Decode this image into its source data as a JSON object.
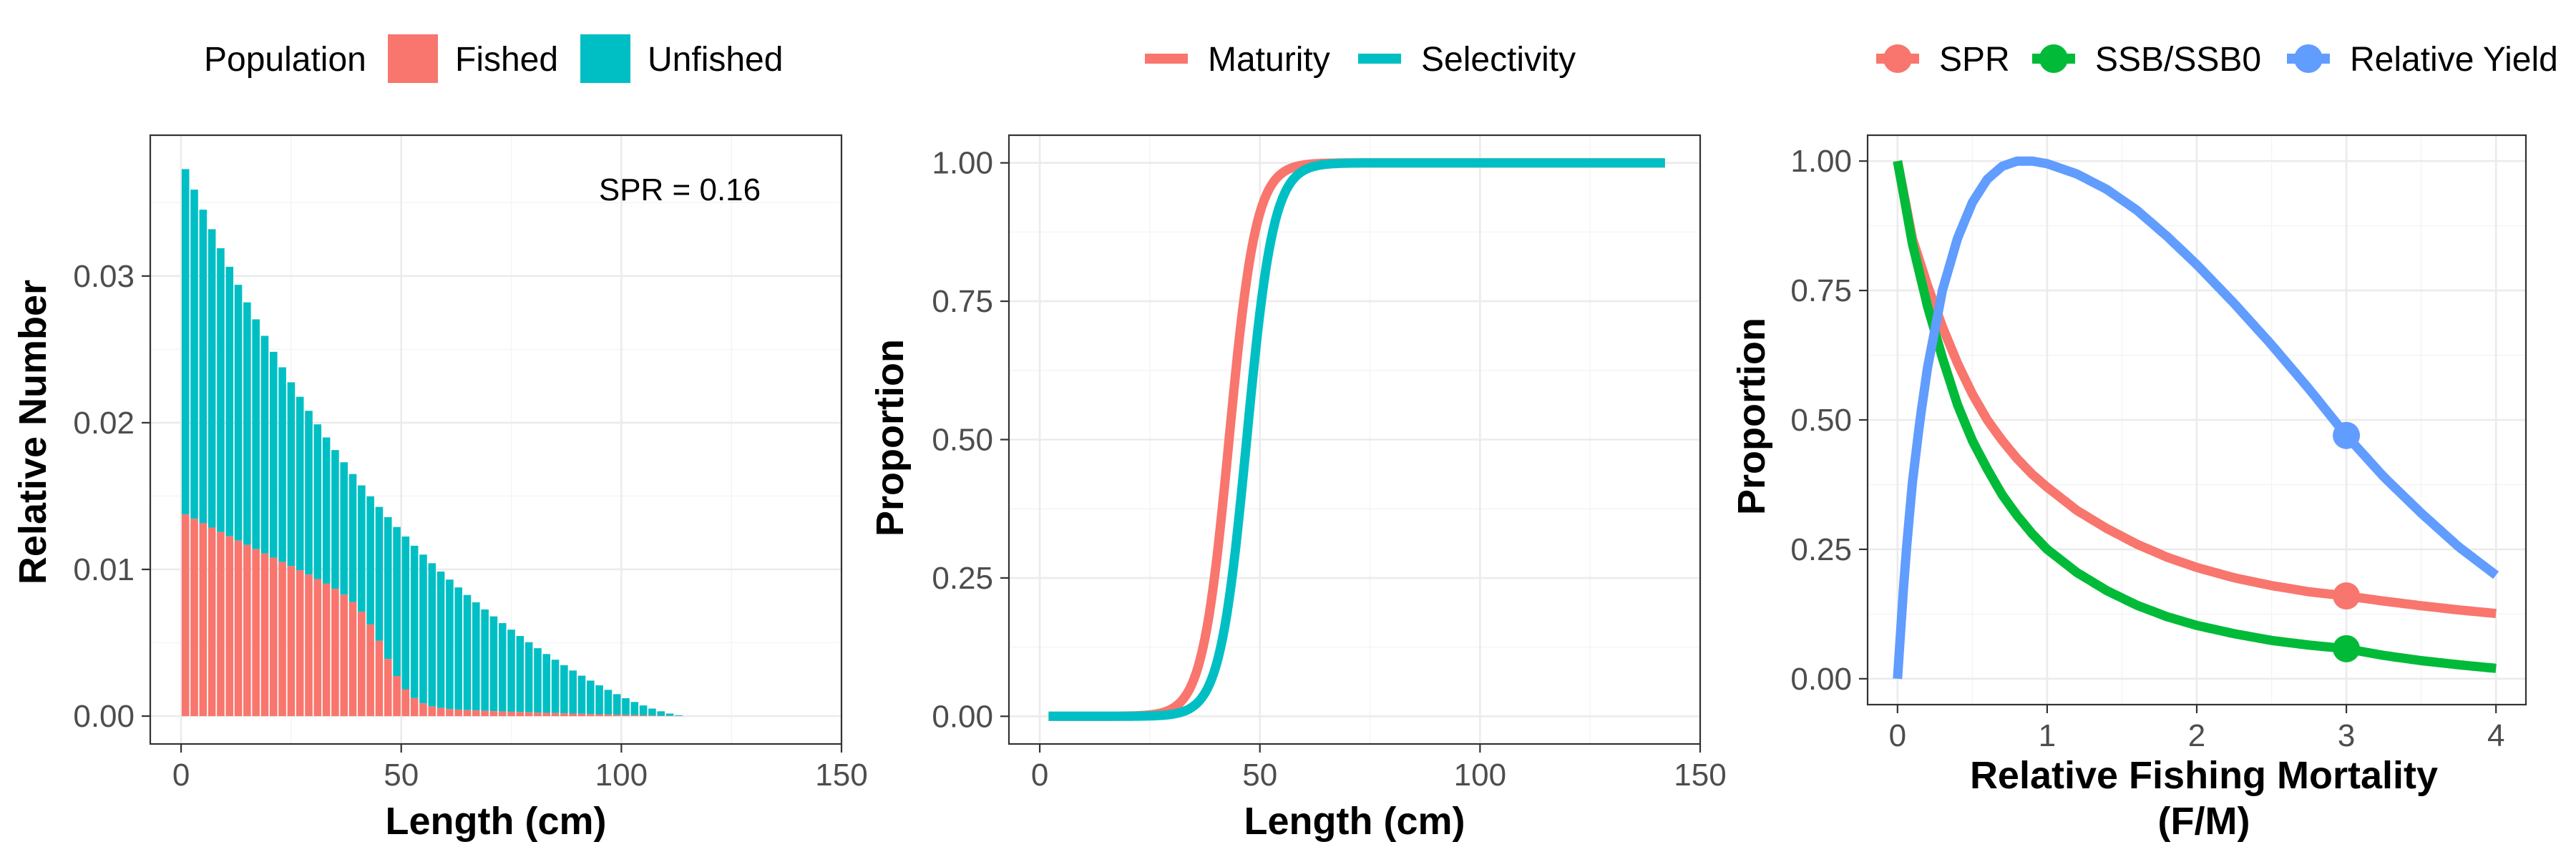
{
  "chart_data": [
    {
      "type": "bar",
      "stacked": true,
      "legend_title": "Population",
      "legend_placement": "top",
      "xlabel": "Length (cm)",
      "ylabel": "Relative Number",
      "xlim": [
        -7,
        150
      ],
      "ylim": [
        -0.0019,
        0.0396
      ],
      "x_ticks": [
        "0",
        "50",
        "100",
        "150"
      ],
      "y_ticks": [
        "0.00",
        "0.01",
        "0.02",
        "0.03"
      ],
      "annotation": "SPR = 0.16",
      "grid": true,
      "series": [
        {
          "name": "Fished",
          "color": "#F8766D"
        },
        {
          "name": "Unfished",
          "color": "#00BFC4"
        }
      ],
      "bins": {
        "start": 1,
        "width": 2,
        "count": 57,
        "unfished_start": 0.038,
        "unfished_end_length": 115,
        "fished_start": 0.0139,
        "maturity_l50": 43,
        "maturity_slope": 0.33,
        "selectivity_l50": 47,
        "selectivity_slope": 0.33
      }
    },
    {
      "type": "line",
      "legend_placement": "top",
      "xlabel": "Length (cm)",
      "ylabel": "Proportion",
      "xlim": [
        -7,
        150
      ],
      "ylim": [
        -0.05,
        1.05
      ],
      "x_ticks": [
        "0",
        "50",
        "100",
        "150"
      ],
      "y_ticks": [
        "0.00",
        "0.25",
        "0.50",
        "0.75",
        "1.00"
      ],
      "grid": true,
      "series": [
        {
          "name": "Maturity",
          "color": "#F8766D",
          "type": "logistic",
          "l50": 43,
          "slope": 0.33,
          "x_range": [
            2,
            142
          ]
        },
        {
          "name": "Selectivity",
          "color": "#00BFC4",
          "type": "logistic",
          "l50": 47,
          "slope": 0.33,
          "x_range": [
            2,
            142
          ]
        }
      ]
    },
    {
      "type": "line",
      "legend_placement": "top",
      "xlabel": "Relative Fishing Mortality",
      "xlabel2": "(F/M)",
      "ylabel": "Proportion",
      "xlim": [
        -0.2,
        4.2
      ],
      "ylim": [
        -0.05,
        1.05
      ],
      "x_ticks": [
        "0",
        "1",
        "2",
        "3",
        "4"
      ],
      "y_ticks": [
        "0.00",
        "0.25",
        "0.50",
        "0.75",
        "1.00"
      ],
      "grid": true,
      "marker_x": 3,
      "series": [
        {
          "name": "SPR",
          "color": "#F8766D",
          "points": [
            [
              0,
              1.0
            ],
            [
              0.1,
              0.85
            ],
            [
              0.2,
              0.76
            ],
            [
              0.3,
              0.68
            ],
            [
              0.4,
              0.61
            ],
            [
              0.5,
              0.55
            ],
            [
              0.6,
              0.5
            ],
            [
              0.7,
              0.46
            ],
            [
              0.8,
              0.425
            ],
            [
              0.9,
              0.395
            ],
            [
              1.0,
              0.37
            ],
            [
              1.2,
              0.325
            ],
            [
              1.4,
              0.29
            ],
            [
              1.6,
              0.26
            ],
            [
              1.8,
              0.235
            ],
            [
              2.0,
              0.215
            ],
            [
              2.25,
              0.195
            ],
            [
              2.5,
              0.18
            ],
            [
              2.75,
              0.168
            ],
            [
              3.0,
              0.16
            ],
            [
              3.25,
              0.15
            ],
            [
              3.5,
              0.141
            ],
            [
              3.75,
              0.133
            ],
            [
              4.0,
              0.126
            ]
          ],
          "marker_value": 0.16
        },
        {
          "name": "SSB/SSB0",
          "color": "#00BA38",
          "points": [
            [
              0,
              1.0
            ],
            [
              0.1,
              0.84
            ],
            [
              0.2,
              0.72
            ],
            [
              0.3,
              0.62
            ],
            [
              0.4,
              0.53
            ],
            [
              0.5,
              0.46
            ],
            [
              0.6,
              0.405
            ],
            [
              0.7,
              0.355
            ],
            [
              0.8,
              0.315
            ],
            [
              0.9,
              0.28
            ],
            [
              1.0,
              0.25
            ],
            [
              1.2,
              0.205
            ],
            [
              1.4,
              0.17
            ],
            [
              1.6,
              0.142
            ],
            [
              1.8,
              0.12
            ],
            [
              2.0,
              0.103
            ],
            [
              2.25,
              0.087
            ],
            [
              2.5,
              0.074
            ],
            [
              2.75,
              0.065
            ],
            [
              3.0,
              0.058
            ],
            [
              3.25,
              0.045
            ],
            [
              3.5,
              0.035
            ],
            [
              3.75,
              0.027
            ],
            [
              4.0,
              0.02
            ]
          ],
          "marker_value": 0.058
        },
        {
          "name": "Relative Yield",
          "color": "#619CFF",
          "points": [
            [
              0,
              0.0
            ],
            [
              0.05,
              0.22
            ],
            [
              0.1,
              0.38
            ],
            [
              0.15,
              0.5
            ],
            [
              0.2,
              0.6
            ],
            [
              0.3,
              0.75
            ],
            [
              0.4,
              0.85
            ],
            [
              0.5,
              0.92
            ],
            [
              0.6,
              0.965
            ],
            [
              0.7,
              0.99
            ],
            [
              0.8,
              1.0
            ],
            [
              0.9,
              1.0
            ],
            [
              1.0,
              0.995
            ],
            [
              1.2,
              0.975
            ],
            [
              1.4,
              0.945
            ],
            [
              1.6,
              0.905
            ],
            [
              1.8,
              0.855
            ],
            [
              2.0,
              0.8
            ],
            [
              2.25,
              0.725
            ],
            [
              2.5,
              0.645
            ],
            [
              2.75,
              0.56
            ],
            [
              3.0,
              0.47
            ],
            [
              3.25,
              0.39
            ],
            [
              3.5,
              0.32
            ],
            [
              3.75,
              0.255
            ],
            [
              4.0,
              0.2
            ]
          ],
          "marker_value": 0.47
        }
      ]
    }
  ]
}
